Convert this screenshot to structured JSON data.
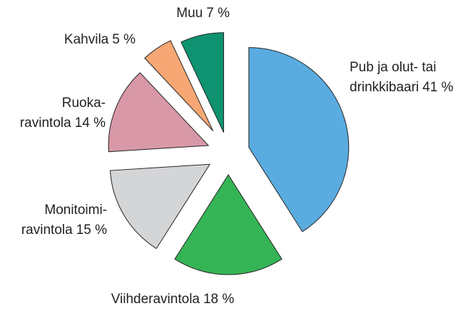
{
  "chart_data": {
    "type": "pie",
    "categories": [
      "Pub ja olut- tai\ndrinkkibaari",
      "Viihderavintola",
      "Monitoimi-\nravintola",
      "Ruoka-\nravintola",
      "Kahvila",
      "Muu"
    ],
    "values": [
      41,
      18,
      15,
      14,
      5,
      7
    ],
    "value_labels": [
      "41 %",
      "18 %",
      "15 %",
      "14 %",
      "5 %",
      "7 %"
    ],
    "colors": [
      "#5aace0",
      "#35b456",
      "#d4d5d7",
      "#d898a8",
      "#f6a774",
      "#0f9270"
    ]
  }
}
